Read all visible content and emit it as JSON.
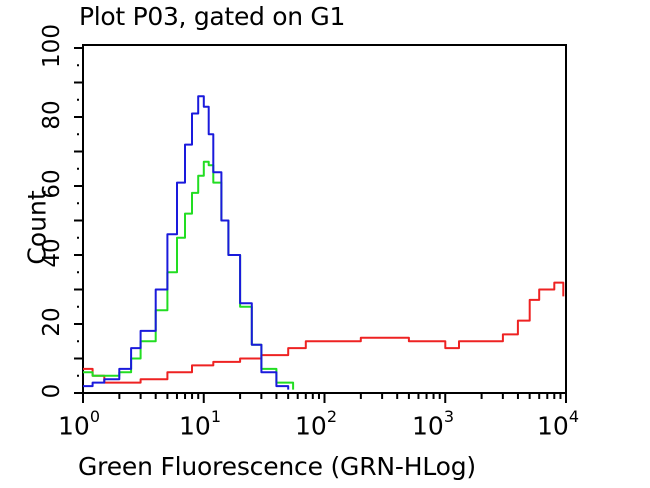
{
  "chart_data": {
    "type": "line",
    "title": "Plot P03, gated on G1",
    "xlabel": "Green Fluorescence (GRN-HLog)",
    "ylabel": "Count",
    "xscale": "log",
    "xlim": [
      1,
      10000
    ],
    "ylim": [
      0,
      100
    ],
    "x_tick_labels": [
      "10^0",
      "10^1",
      "10^2",
      "10^3",
      "10^4"
    ],
    "y_tick_labels": [
      "0",
      "20",
      "40",
      "60",
      "80",
      "100"
    ],
    "grid": false,
    "legend": null,
    "series": [
      {
        "name": "blue",
        "color": "#1a1adc",
        "x": [
          1.0,
          1.2,
          1.5,
          2.0,
          2.5,
          3.0,
          4.0,
          5.0,
          6.0,
          7.0,
          8.0,
          9.0,
          10.0,
          11.0,
          12.0,
          14.0,
          16.0,
          20.0,
          25.0,
          30.0,
          40.0,
          50.0
        ],
        "y": [
          2,
          3,
          4,
          7,
          13,
          18,
          30,
          46,
          61,
          72,
          81,
          86,
          83,
          75,
          64,
          50,
          40,
          26,
          14,
          6,
          2,
          1
        ]
      },
      {
        "name": "green",
        "color": "#22dd22",
        "x": [
          1.0,
          1.2,
          1.5,
          2.0,
          2.5,
          3.0,
          4.0,
          5.0,
          6.0,
          7.0,
          8.0,
          9.0,
          10.0,
          11.0,
          12.0,
          14.0,
          16.0,
          20.0,
          25.0,
          30.0,
          40.0,
          55.0
        ],
        "y": [
          6,
          5,
          5,
          6,
          10,
          15,
          24,
          35,
          45,
          52,
          58,
          63,
          67,
          66,
          61,
          50,
          40,
          25,
          14,
          7,
          3,
          1
        ]
      },
      {
        "name": "red",
        "color": "#ee2222",
        "x": [
          1.0,
          1.2,
          1.5,
          2.0,
          3.0,
          5.0,
          8.0,
          12.0,
          20.0,
          30.0,
          50.0,
          70.0,
          100.0,
          200.0,
          300.0,
          500.0,
          1000.0,
          1300.0,
          2000.0,
          3000.0,
          4000.0,
          5000.0,
          6000.0,
          8000.0,
          9500.0
        ],
        "y": [
          7,
          5,
          3,
          3,
          4,
          6,
          8,
          9,
          10,
          11,
          13,
          15,
          15,
          16,
          16,
          15,
          13,
          15,
          15,
          17,
          21,
          27,
          30,
          32,
          28
        ]
      }
    ]
  },
  "plot": {
    "title": "Plot P03, gated on G1",
    "xlabel": "Green Fluorescence (GRN-HLog)",
    "ylabel": "Count",
    "yticks": [
      "0",
      "20",
      "40",
      "60",
      "80",
      "100"
    ],
    "xticks": [
      {
        "base": "10",
        "exp": "0"
      },
      {
        "base": "10",
        "exp": "1"
      },
      {
        "base": "10",
        "exp": "2"
      },
      {
        "base": "10",
        "exp": "3"
      },
      {
        "base": "10",
        "exp": "4"
      }
    ]
  }
}
